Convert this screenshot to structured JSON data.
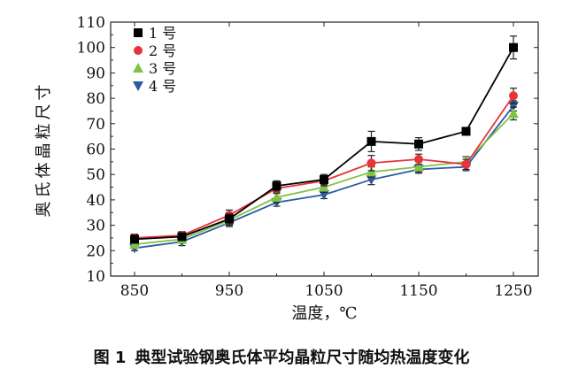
{
  "chart_data": {
    "type": "line",
    "x": [
      850,
      900,
      950,
      1000,
      1050,
      1100,
      1150,
      1200,
      1250
    ],
    "xlim": [
      850,
      1250
    ],
    "xticks": [
      850,
      950,
      1050,
      1150,
      1250
    ],
    "ylim": [
      10,
      110
    ],
    "yticks": [
      10,
      20,
      30,
      40,
      50,
      60,
      70,
      80,
      90,
      100,
      110
    ],
    "xlabel": "温度，℃",
    "ylabel": "奥氏体晶粒尺寸",
    "legend_position": "top-left",
    "series": [
      {
        "name": "1 号",
        "color": "#000000",
        "marker": "square",
        "values": [
          24.5,
          25.5,
          32.5,
          45.5,
          48,
          63,
          62,
          67,
          100
        ],
        "errors": [
          1.5,
          1.5,
          2,
          2,
          2,
          4,
          2.5,
          1.5,
          4.5
        ]
      },
      {
        "name": "2 号",
        "color": "#e8333a",
        "marker": "circle",
        "values": [
          25,
          26,
          34,
          44.5,
          47.5,
          54.5,
          56,
          54,
          81
        ],
        "errors": [
          1.5,
          1.5,
          2,
          2,
          2,
          3,
          2,
          2,
          3
        ]
      },
      {
        "name": "3 号",
        "color": "#80c342",
        "marker": "triangle-up",
        "values": [
          22.5,
          24.5,
          32,
          41,
          45,
          51,
          53,
          55,
          74
        ],
        "errors": [
          1.5,
          1.5,
          2,
          2,
          2,
          2,
          2,
          2,
          2.5
        ]
      },
      {
        "name": "4 号",
        "color": "#2b5aa6",
        "marker": "triangle-down",
        "values": [
          21,
          23.5,
          31,
          39,
          42,
          48,
          52,
          53,
          77
        ],
        "errors": [
          1,
          1.5,
          1.5,
          1.5,
          1.5,
          2,
          1.5,
          1.5,
          2
        ]
      }
    ]
  },
  "caption": {
    "figure_number": "图 1",
    "text": "典型试验钢奥氏体平均晶粒尺寸随均热温度变化"
  }
}
